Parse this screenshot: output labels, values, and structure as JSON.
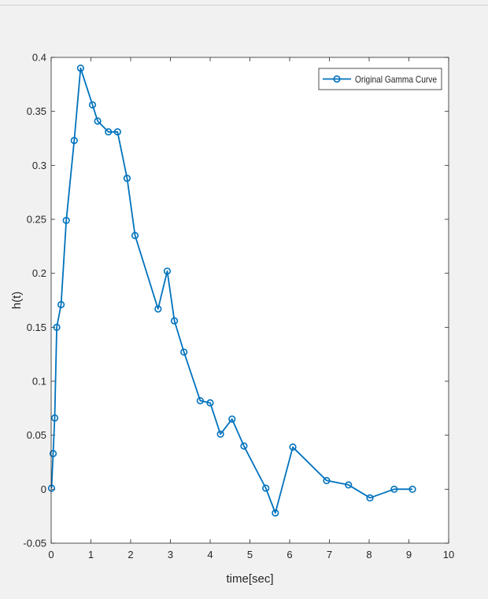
{
  "colors": {
    "background": "#f1f1f1",
    "axes_background": "#ffffff",
    "axis": "#262626",
    "series": "#0072bd"
  },
  "chart_data": {
    "type": "line",
    "title": "",
    "xlabel": "time[sec]",
    "ylabel": "h(t)",
    "xlim": [
      0,
      10
    ],
    "ylim": [
      -0.05,
      0.4
    ],
    "xticks": [
      0,
      1,
      2,
      3,
      4,
      5,
      6,
      7,
      8,
      9,
      10
    ],
    "yticks": [
      -0.05,
      0,
      0.05,
      0.1,
      0.15,
      0.2,
      0.25,
      0.3,
      0.35,
      0.4
    ],
    "ytick_labels": [
      "-0.05",
      "0",
      "0.05",
      "0.1",
      "0.15",
      "0.2",
      "0.25",
      "0.3",
      "0.35",
      "0.4"
    ],
    "grid": false,
    "legend_position": "top-right",
    "marker": "circle",
    "series": [
      {
        "name": "Original Gamma Curve",
        "x": [
          0.01,
          0.05,
          0.09,
          0.14,
          0.25,
          0.38,
          0.58,
          0.74,
          1.04,
          1.17,
          1.44,
          1.67,
          1.91,
          2.11,
          2.69,
          2.92,
          3.1,
          3.34,
          3.75,
          4.0,
          4.26,
          4.55,
          4.85,
          5.4,
          5.64,
          6.08,
          6.93,
          7.48,
          8.02,
          8.63,
          9.09
        ],
        "y": [
          0.001,
          0.033,
          0.066,
          0.15,
          0.171,
          0.249,
          0.323,
          0.39,
          0.356,
          0.341,
          0.331,
          0.331,
          0.288,
          0.235,
          0.167,
          0.202,
          0.156,
          0.127,
          0.082,
          0.08,
          0.051,
          0.065,
          0.04,
          0.001,
          -0.022,
          0.039,
          0.008,
          0.004,
          -0.008,
          0.0,
          0.0
        ]
      }
    ]
  }
}
